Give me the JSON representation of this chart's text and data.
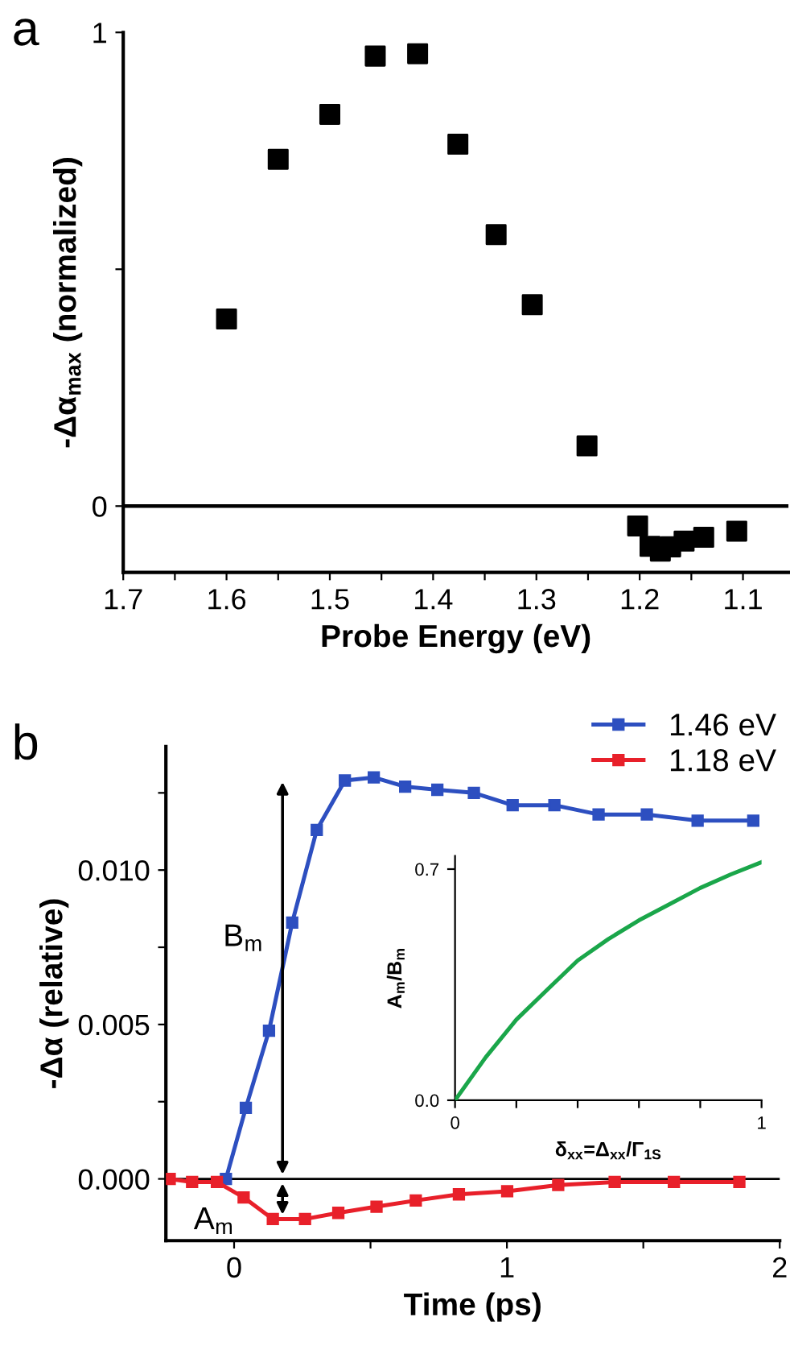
{
  "chart_data": [
    {
      "type": "scatter",
      "xlabel": "Probe Energy (eV)",
      "ylabel": "-Δα$_{max}$ (normalized)",
      "annotations": [
        "a"
      ],
      "marker": "square",
      "xlim": [
        1.7,
        1.056
      ],
      "ylim": [
        -0.14,
        1.0
      ],
      "xticks": [
        1.7,
        {
          "value": 1.65,
          "label": null
        },
        1.6,
        {
          "value": 1.55,
          "label": null
        },
        1.5,
        {
          "value": 1.45,
          "label": null
        },
        1.4,
        {
          "value": 1.35,
          "label": null
        },
        1.3,
        {
          "value": 1.25,
          "label": null
        },
        1.2,
        {
          "value": 1.15,
          "label": null
        },
        1.1
      ],
      "yticks": [
        0,
        {
          "value": 0.5,
          "label": null
        },
        1
      ],
      "ref_lines": [
        {
          "axis": "y",
          "value": 0,
          "color": "#000000"
        }
      ],
      "series": [
        {
          "color": "#000000",
          "x": [
            1.6,
            1.55,
            1.5,
            1.456,
            1.415,
            1.376,
            1.339,
            1.304,
            1.251,
            1.202,
            1.19,
            1.18,
            1.17,
            1.157,
            1.138,
            1.106
          ],
          "values": [
            0.395,
            0.732,
            0.827,
            0.95,
            0.955,
            0.764,
            0.573,
            0.425,
            0.127,
            -0.042,
            -0.085,
            -0.095,
            -0.086,
            -0.074,
            -0.066,
            -0.053
          ]
        }
      ]
    },
    {
      "type": "line",
      "xlabel": "Time (ps)",
      "ylabel": "-Δα (relative)",
      "annotations": [
        "b",
        "B$_{m}$",
        "A$_{m}$"
      ],
      "marker": "square",
      "line_style": "solid",
      "legend": "top right",
      "xlim": [
        -0.25,
        2
      ],
      "ylim": [
        -0.002,
        0.014
      ],
      "xticks": [
        0,
        {
          "value": 0.5,
          "label": null
        },
        1,
        {
          "value": 1.5,
          "label": null
        },
        2
      ],
      "yticks": [
        {
          "value": 0,
          "label": "0.000"
        },
        {
          "value": 0.0025,
          "label": null
        },
        {
          "value": 0.005,
          "label": "0.005"
        },
        {
          "value": 0.0075,
          "label": null
        },
        {
          "value": 0.01,
          "label": "0.010"
        },
        {
          "value": 0.0125,
          "label": null
        }
      ],
      "ref_lines": [
        {
          "axis": "y",
          "value": 0,
          "color": "#000000"
        }
      ],
      "series": [
        {
          "name": "1.46 eV",
          "color": "#2d4fc0",
          "x": [
            -0.03,
            0.043,
            0.128,
            0.213,
            0.303,
            0.406,
            0.512,
            0.627,
            0.745,
            0.879,
            1.021,
            1.174,
            1.336,
            1.513,
            1.699,
            1.903
          ],
          "values": [
            0.0,
            0.0023,
            0.0048,
            0.0083,
            0.0113,
            0.0129,
            0.013,
            0.0127,
            0.0126,
            0.0125,
            0.0121,
            0.0121,
            0.0118,
            0.0118,
            0.0116,
            0.0116
          ]
        },
        {
          "name": "1.18 eV",
          "color": "#e8202a",
          "x": [
            -0.236,
            -0.154,
            -0.063,
            0.035,
            0.142,
            0.26,
            0.382,
            0.522,
            0.666,
            0.824,
            1.001,
            1.188,
            1.395,
            1.612,
            1.852
          ],
          "values": [
            0.0,
            -0.0001,
            -0.0001,
            -0.0006,
            -0.0013,
            -0.0013,
            -0.0011,
            -0.0009,
            -0.0007,
            -0.0005,
            -0.0004,
            -0.0002,
            -0.0001,
            -0.0001,
            -0.0001
          ]
        }
      ]
    },
    {
      "type": "line",
      "xlabel": "δ$_{xx}$=Δ$_{xx}$/Γ$_{1S}$",
      "ylabel": "A$_{m}$/B$_{m}$",
      "marker": "none",
      "line_style": "solid",
      "xlim": [
        0,
        1
      ],
      "ylim": [
        0,
        0.74
      ],
      "xticks": [
        0,
        {
          "value": 0.2,
          "label": null
        },
        {
          "value": 0.4,
          "label": null
        },
        {
          "value": 0.6,
          "label": null
        },
        {
          "value": 0.8,
          "label": null
        },
        1
      ],
      "yticks": [
        {
          "value": 0,
          "label": "0.0"
        },
        {
          "value": 0.7,
          "label": "0.7"
        }
      ],
      "series": [
        {
          "color": "#1aa64a",
          "x": [
            0,
            0.1,
            0.2,
            0.3,
            0.4,
            0.5,
            0.6,
            0.7,
            0.8,
            0.9,
            1.0
          ],
          "values": [
            0,
            0.13,
            0.244,
            0.334,
            0.423,
            0.488,
            0.545,
            0.594,
            0.643,
            0.684,
            0.721
          ]
        }
      ]
    }
  ]
}
